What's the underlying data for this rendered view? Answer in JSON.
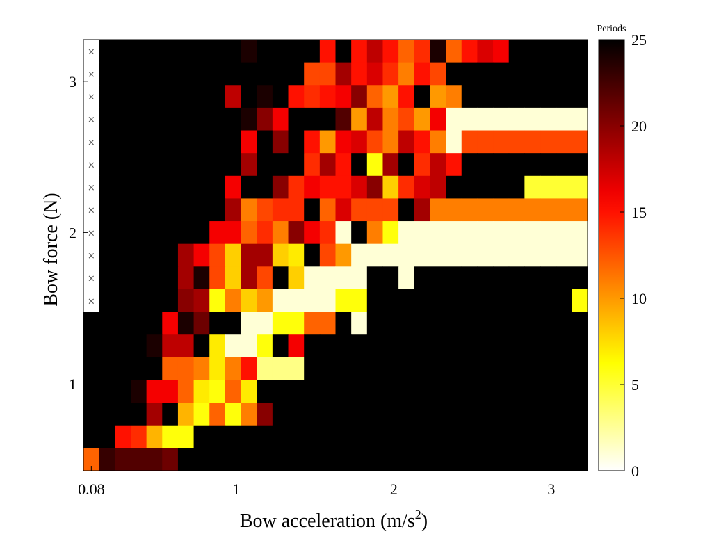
{
  "chart_data": {
    "type": "heatmap",
    "xlabel": "Bow acceleration (m/s²)",
    "xlabel_base": "Bow acceleration (m/s",
    "xlabel_sup": "2",
    "xlabel_end": ")",
    "ylabel": "Bow force (N)",
    "colorbar_label": "Periods",
    "colorbar_ticks": [
      "0",
      "5",
      "10",
      "15",
      "20",
      "25"
    ],
    "colorbar_range": [
      0,
      25
    ],
    "colormap": "hot (reversed): 0 = white, 25 = black",
    "x_ticks": [
      {
        "value": 0.08,
        "label": "0.08"
      },
      {
        "value": 1,
        "label": "1"
      },
      {
        "value": 2,
        "label": "2"
      },
      {
        "value": 3,
        "label": "3"
      }
    ],
    "y_ticks": [
      {
        "value": 1,
        "label": "1"
      },
      {
        "value": 2,
        "label": "2"
      },
      {
        "value": 3,
        "label": "3"
      }
    ],
    "x_centers": [
      0.08,
      0.18,
      0.28,
      0.38,
      0.48,
      0.58,
      0.68,
      0.78,
      0.88,
      0.98,
      1.08,
      1.18,
      1.28,
      1.38,
      1.48,
      1.58,
      1.68,
      1.78,
      1.88,
      1.98,
      2.08,
      2.18,
      2.28,
      2.38,
      2.48,
      2.58,
      2.68,
      2.78,
      2.88,
      2.98,
      3.08,
      3.18
    ],
    "y_centers_top_to_bottom": [
      3.2,
      3.05,
      2.9,
      2.75,
      2.6,
      2.45,
      2.3,
      2.15,
      2.0,
      1.85,
      1.7,
      1.55,
      1.4,
      1.25,
      1.1,
      0.95,
      0.8,
      0.65,
      0.5
    ],
    "xlim": [
      0.03,
      3.23
    ],
    "ylim": [
      0.425,
      3.275
    ],
    "missing_marker": "×",
    "missing_rows_first_column": [
      0,
      1,
      2,
      3,
      4,
      5,
      6,
      7,
      8,
      9,
      10,
      11
    ],
    "values": [
      [
        null,
        25,
        25,
        25,
        25,
        25,
        25,
        25,
        25,
        25,
        24,
        25,
        25,
        25,
        25,
        15,
        25,
        15,
        18,
        15,
        12,
        14,
        24,
        12,
        15,
        17,
        16,
        25,
        25,
        25,
        25,
        25
      ],
      [
        null,
        25,
        25,
        25,
        25,
        25,
        25,
        25,
        25,
        25,
        25,
        25,
        25,
        25,
        13,
        13,
        19,
        15,
        17,
        14,
        11,
        15,
        13,
        25,
        25,
        25,
        25,
        25,
        25,
        25,
        25,
        25
      ],
      [
        null,
        25,
        25,
        25,
        25,
        25,
        25,
        25,
        25,
        18,
        25,
        24,
        25,
        15,
        14,
        15,
        16,
        20,
        12,
        10,
        15,
        25,
        10,
        11,
        25,
        25,
        25,
        25,
        25,
        25,
        25,
        25
      ],
      [
        null,
        25,
        25,
        25,
        25,
        25,
        25,
        25,
        25,
        25,
        24,
        20,
        16,
        25,
        25,
        25,
        22,
        10,
        18,
        11,
        13,
        10,
        16,
        1,
        1,
        1,
        1,
        1,
        1,
        1,
        1,
        1
      ],
      [
        null,
        25,
        25,
        25,
        25,
        25,
        25,
        25,
        25,
        25,
        16,
        25,
        20,
        25,
        15,
        10,
        16,
        17,
        13,
        11,
        18,
        15,
        11,
        1,
        13,
        13,
        13,
        13,
        13,
        13,
        13,
        13
      ],
      [
        null,
        25,
        25,
        25,
        25,
        25,
        25,
        25,
        25,
        25,
        19,
        25,
        25,
        25,
        14,
        19,
        15,
        25,
        6,
        19,
        25,
        14,
        18,
        15,
        25,
        25,
        25,
        25,
        25,
        25,
        25,
        25
      ],
      [
        null,
        25,
        25,
        25,
        25,
        25,
        25,
        25,
        25,
        16,
        25,
        25,
        20,
        14,
        16,
        15,
        15,
        17,
        20,
        8,
        14,
        17,
        18,
        25,
        25,
        25,
        25,
        25,
        5,
        5,
        5,
        5
      ],
      [
        null,
        25,
        25,
        25,
        25,
        25,
        25,
        25,
        25,
        19,
        11,
        13,
        14,
        14,
        25,
        12,
        17,
        13,
        13,
        13,
        25,
        19,
        11,
        11,
        11,
        11,
        11,
        11,
        11,
        11,
        11,
        11
      ],
      [
        null,
        25,
        25,
        25,
        25,
        25,
        25,
        25,
        16,
        16,
        12,
        14,
        11,
        20,
        16,
        14,
        1,
        25,
        11,
        6,
        1,
        1,
        1,
        1,
        1,
        1,
        1,
        1,
        1,
        1,
        1,
        1
      ],
      [
        null,
        25,
        25,
        25,
        25,
        25,
        19,
        16,
        13,
        8,
        19,
        19,
        8,
        7,
        25,
        13,
        10,
        1,
        1,
        1,
        1,
        1,
        1,
        1,
        1,
        1,
        1,
        1,
        1,
        1,
        1,
        1
      ],
      [
        null,
        25,
        25,
        25,
        25,
        25,
        19,
        24,
        13,
        8,
        19,
        13,
        25,
        8,
        1,
        1,
        1,
        1,
        25,
        25,
        1,
        25,
        25,
        25,
        25,
        25,
        25,
        25,
        25,
        25,
        25,
        25
      ],
      [
        null,
        25,
        25,
        25,
        25,
        25,
        20,
        19,
        6,
        11,
        8,
        10,
        1,
        1,
        1,
        1,
        6,
        6,
        25,
        25,
        25,
        25,
        25,
        25,
        25,
        25,
        25,
        25,
        25,
        25,
        25,
        6
      ],
      [
        25,
        25,
        25,
        25,
        25,
        16,
        24,
        21,
        25,
        25,
        1,
        1,
        6,
        6,
        12,
        12,
        25,
        1,
        25,
        25,
        25,
        25,
        25,
        25,
        25,
        25,
        25,
        25,
        25,
        25,
        25,
        25
      ],
      [
        25,
        25,
        25,
        25,
        24,
        18,
        18,
        25,
        7,
        1,
        1,
        6,
        25,
        16,
        25,
        25,
        25,
        25,
        25,
        25,
        25,
        25,
        25,
        25,
        25,
        25,
        25,
        25,
        25,
        25,
        25,
        25
      ],
      [
        25,
        25,
        25,
        25,
        25,
        12,
        12,
        11,
        7,
        11,
        15,
        3,
        3,
        3,
        25,
        25,
        25,
        25,
        25,
        25,
        25,
        25,
        25,
        25,
        25,
        25,
        25,
        25,
        25,
        25,
        25,
        25
      ],
      [
        25,
        25,
        25,
        24,
        16,
        16,
        12,
        7,
        6,
        12,
        7,
        25,
        25,
        25,
        25,
        25,
        25,
        25,
        25,
        25,
        25,
        25,
        25,
        25,
        25,
        25,
        25,
        25,
        25,
        25,
        25,
        25
      ],
      [
        25,
        25,
        25,
        25,
        19,
        25,
        9,
        6,
        12,
        6,
        11,
        20,
        25,
        25,
        25,
        25,
        25,
        25,
        25,
        25,
        25,
        25,
        25,
        25,
        25,
        25,
        25,
        25,
        25,
        25,
        25,
        25
      ],
      [
        25,
        25,
        15,
        14,
        9,
        6,
        6,
        25,
        25,
        25,
        25,
        25,
        25,
        25,
        25,
        25,
        25,
        25,
        25,
        25,
        25,
        25,
        25,
        25,
        25,
        25,
        25,
        25,
        25,
        25,
        25,
        25
      ],
      [
        12,
        23,
        22,
        22,
        22,
        21,
        25,
        25,
        25,
        25,
        25,
        25,
        25,
        25,
        25,
        25,
        25,
        25,
        25,
        25,
        25,
        25,
        25,
        25,
        25,
        25,
        25,
        25,
        25,
        25,
        25,
        25
      ]
    ],
    "grid": false,
    "legend": "colorbar right"
  }
}
